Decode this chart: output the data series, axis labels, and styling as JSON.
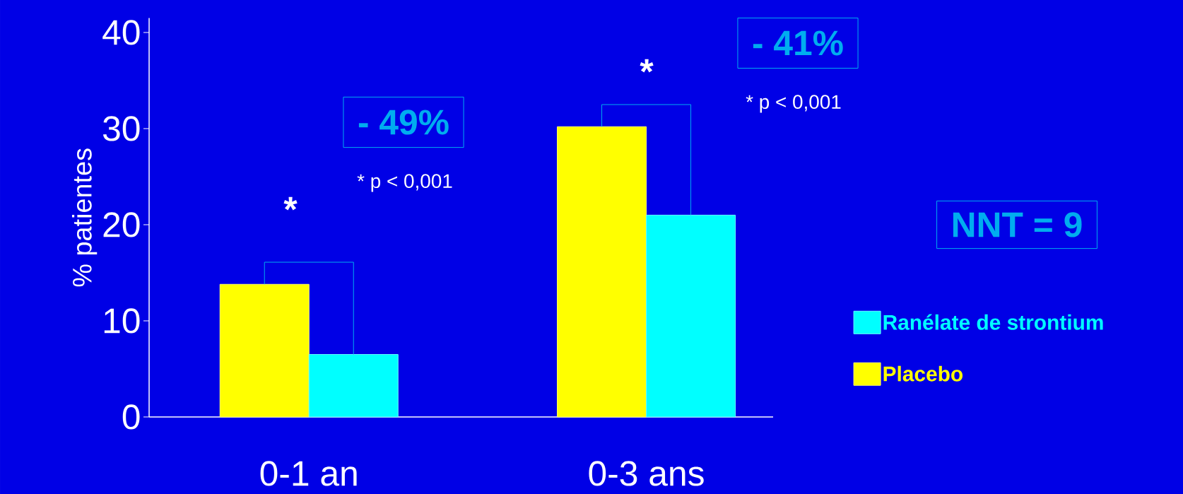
{
  "chart_data": {
    "type": "bar",
    "ylabel": "% patientes",
    "categories": [
      "0-1 an",
      "0-3 ans"
    ],
    "series": [
      {
        "name": "Placebo",
        "color": "#ffff00",
        "values": [
          13.8,
          30.2
        ]
      },
      {
        "name": "Ranélate de strontium",
        "color": "#00ffff",
        "values": [
          6.5,
          21.0
        ]
      }
    ],
    "ylim": [
      0,
      41.5
    ],
    "yticks": [
      0,
      10,
      20,
      30,
      40
    ],
    "grid": false,
    "legend": "right",
    "annotations": [
      "- 49%",
      "* p < 0,001",
      "*",
      "- 41%",
      "* p < 0,001",
      "*",
      "NNT = 9"
    ]
  }
}
